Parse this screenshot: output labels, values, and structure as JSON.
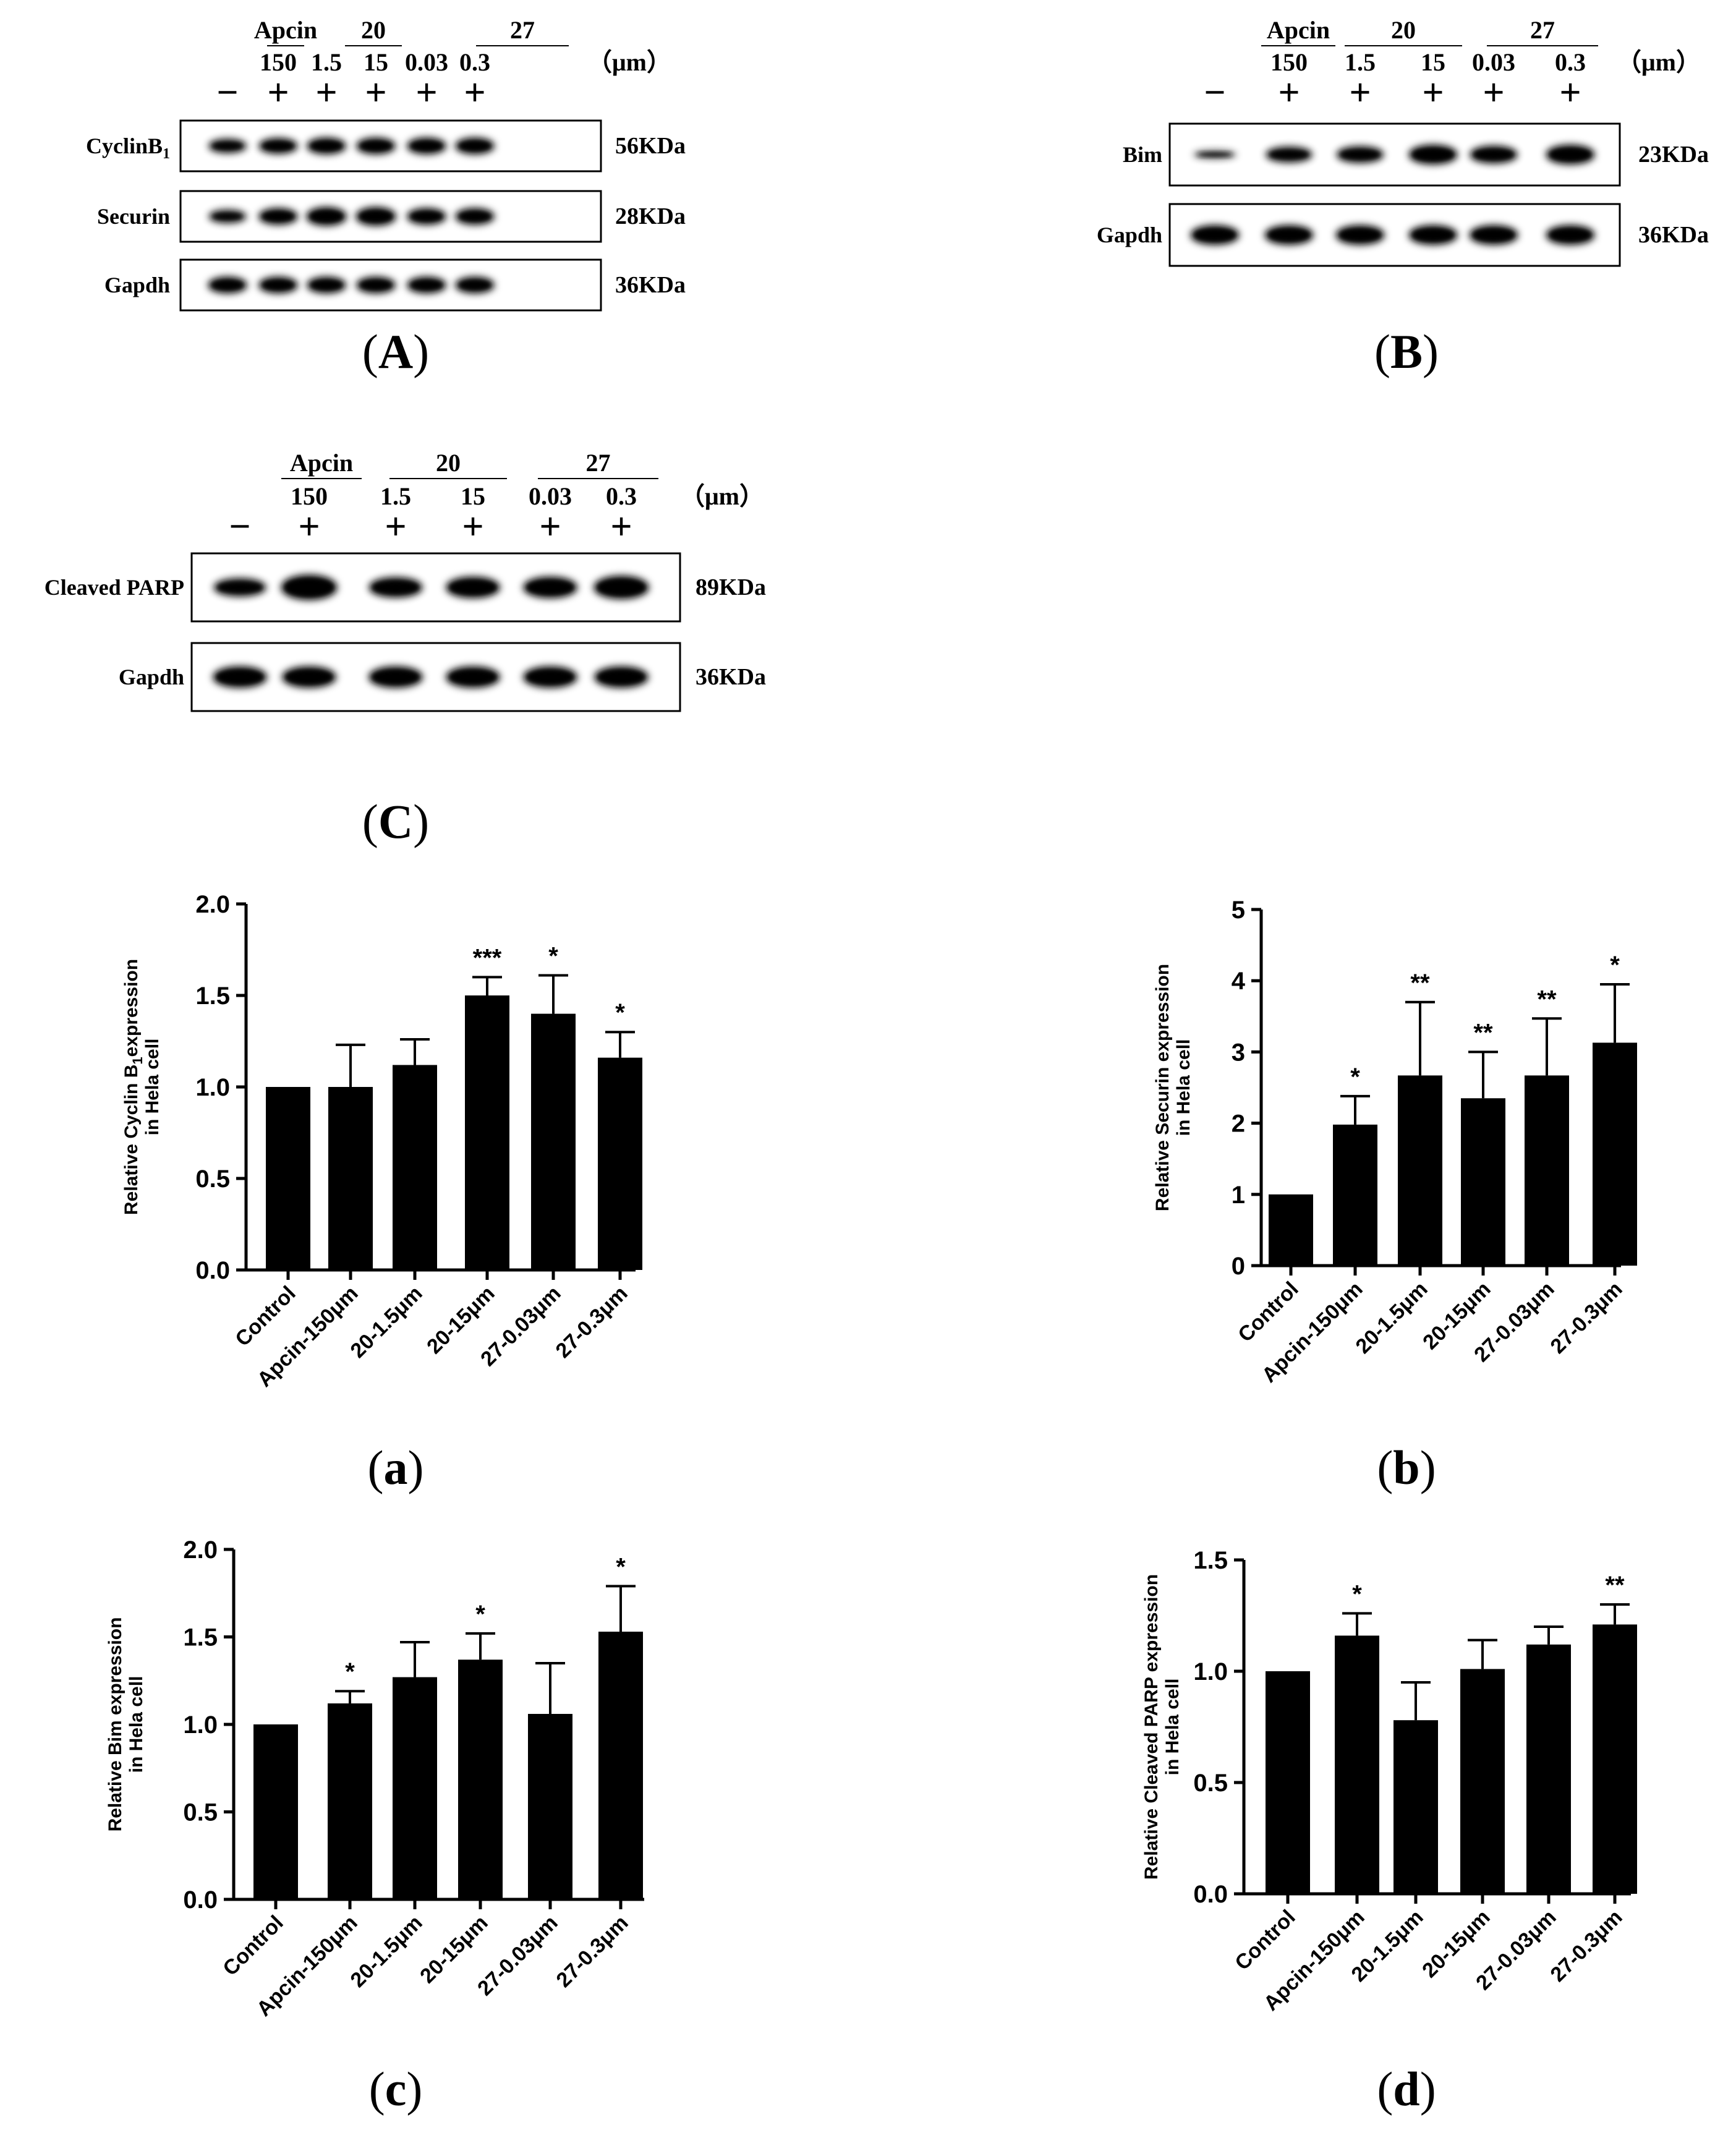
{
  "panel_labels": [
    "A",
    "B",
    "C",
    "a",
    "b",
    "c",
    "d"
  ],
  "blots": [
    {
      "panel": "A",
      "groups": [
        {
          "name": "Apcin",
          "doses": [
            "150"
          ]
        },
        {
          "name": "20",
          "doses": [
            "1.5",
            "15"
          ]
        },
        {
          "name": "27",
          "doses": [
            "0.03",
            "0.3"
          ]
        }
      ],
      "unit": "（μm）",
      "signs": [
        "−",
        "+",
        "+",
        "+",
        "+",
        "+"
      ],
      "bands": [
        {
          "protein": "CyclinB",
          "protein_sub": "1",
          "size": "56KDa"
        },
        {
          "protein": "Securin",
          "size": "28KDa"
        },
        {
          "protein": "Gapdh",
          "size": "36KDa"
        }
      ]
    },
    {
      "panel": "B",
      "groups": [
        {
          "name": "Apcin",
          "doses": [
            "150"
          ]
        },
        {
          "name": "20",
          "doses": [
            "1.5",
            "15"
          ]
        },
        {
          "name": "27",
          "doses": [
            "0.03",
            "0.3"
          ]
        }
      ],
      "unit": "（μm）",
      "signs": [
        "−",
        "+",
        "+",
        "+",
        "+",
        "+"
      ],
      "bands": [
        {
          "protein": "Bim",
          "size": "23KDa"
        },
        {
          "protein": "Gapdh",
          "size": "36KDa"
        }
      ]
    },
    {
      "panel": "C",
      "groups": [
        {
          "name": "Apcin",
          "doses": [
            "150"
          ]
        },
        {
          "name": "20",
          "doses": [
            "1.5",
            "15"
          ]
        },
        {
          "name": "27",
          "doses": [
            "0.03",
            "0.3"
          ]
        }
      ],
      "unit": "（μm）",
      "signs": [
        "−",
        "+",
        "+",
        "+",
        "+",
        "+"
      ],
      "bands": [
        {
          "protein": "Cleaved PARP",
          "size": "89KDa"
        },
        {
          "protein": "Gapdh",
          "size": "36KDa"
        }
      ]
    }
  ],
  "chart_data": [
    {
      "panel": "a",
      "type": "bar",
      "categories": [
        "Control",
        "Apcin-150μm",
        "20-1.5μm",
        "20-15μm",
        "27-0.03μm",
        "27-0.3μm"
      ],
      "values": [
        1.0,
        1.0,
        1.12,
        1.5,
        1.4,
        1.16
      ],
      "errors": [
        0,
        0.23,
        0.14,
        0.1,
        0.21,
        0.14
      ],
      "significance": [
        "",
        "",
        "",
        "***",
        "*",
        "*"
      ],
      "ylabel": "Relative Cyclin B",
      "ylabel_sub": "1",
      "ylabel_rest": "expression",
      "ylabel_line2": "in Hela cell",
      "ylim": [
        0,
        2.0
      ],
      "yticks": [
        "0.0",
        "0.5",
        "1.0",
        "1.5",
        "2.0"
      ],
      "grid": false,
      "color": "#000000"
    },
    {
      "panel": "b",
      "type": "bar",
      "categories": [
        "Control",
        "Apcin-150μm",
        "20-1.5μm",
        "20-15μm",
        "27-0.03μm",
        "27-0.3μm"
      ],
      "values": [
        1.0,
        1.98,
        2.67,
        2.35,
        2.67,
        3.13
      ],
      "errors": [
        0,
        0.4,
        1.03,
        0.65,
        0.8,
        0.82
      ],
      "significance": [
        "",
        "*",
        "**",
        "**",
        "**",
        "*"
      ],
      "ylabel": "Relative Securin expression",
      "ylabel_line2": "in Hela cell",
      "ylim": [
        0,
        5
      ],
      "yticks": [
        "0",
        "1",
        "2",
        "3",
        "4",
        "5"
      ],
      "grid": false,
      "color": "#000000"
    },
    {
      "panel": "c",
      "type": "bar",
      "categories": [
        "Control",
        "Apcin-150μm",
        "20-1.5μm",
        "20-15μm",
        "27-0.03μm",
        "27-0.3μm"
      ],
      "values": [
        1.0,
        1.12,
        1.27,
        1.37,
        1.06,
        1.53
      ],
      "errors": [
        0,
        0.07,
        0.2,
        0.15,
        0.29,
        0.26
      ],
      "significance": [
        "",
        "*",
        "",
        "*",
        "",
        "*"
      ],
      "ylabel": "Relative Bim expression",
      "ylabel_line2": "in Hela cell",
      "ylim": [
        0,
        2.0
      ],
      "yticks": [
        "0.0",
        "0.5",
        "1.0",
        "1.5",
        "2.0"
      ],
      "grid": false,
      "color": "#000000"
    },
    {
      "panel": "d",
      "type": "bar",
      "categories": [
        "Control",
        "Apcin-150μm",
        "20-1.5μm",
        "20-15μm",
        "27-0.03μm",
        "27-0.3μm"
      ],
      "values": [
        1.0,
        1.16,
        0.78,
        1.01,
        1.12,
        1.21
      ],
      "errors": [
        0,
        0.1,
        0.17,
        0.13,
        0.08,
        0.09
      ],
      "significance": [
        "",
        "*",
        "",
        "",
        "",
        "**"
      ],
      "ylabel": "Relative Cleaved PARP expression",
      "ylabel_line2": "in Hela cell",
      "ylim": [
        0,
        1.5
      ],
      "yticks": [
        "0.0",
        "0.5",
        "1.0",
        "1.5"
      ],
      "grid": false,
      "color": "#000000"
    }
  ]
}
